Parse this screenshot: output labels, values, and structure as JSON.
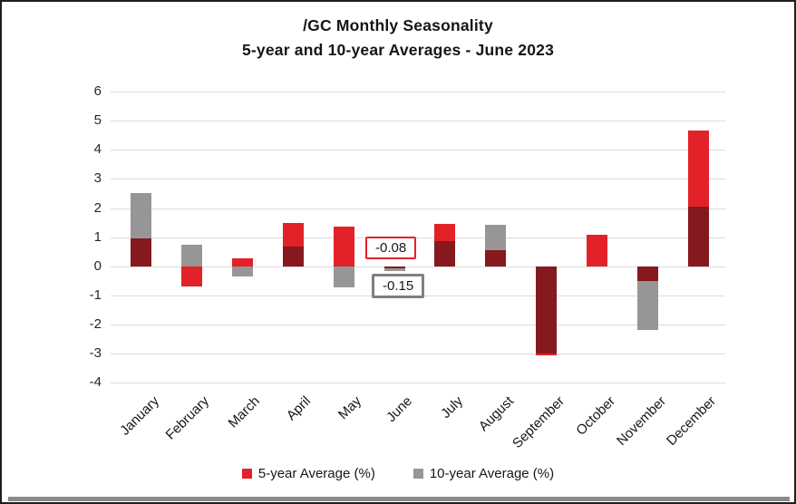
{
  "chart_data": {
    "type": "bar",
    "title_line1": "/GC Monthly Seasonality",
    "title_line2": "5-year and 10-year Averages - June 2023",
    "categories": [
      "January",
      "February",
      "March",
      "April",
      "May",
      "June",
      "July",
      "August",
      "September",
      "October",
      "November",
      "December"
    ],
    "series": [
      {
        "name": "5-year Average (%)",
        "color": "#e32128",
        "values": [
          0.97,
          -0.7,
          0.28,
          1.48,
          1.35,
          -0.08,
          1.45,
          0.54,
          -3.05,
          1.07,
          -0.5,
          4.65
        ]
      },
      {
        "name": "10-year Average (%)",
        "color": "#969696",
        "values": [
          2.52,
          0.75,
          -0.34,
          0.68,
          -0.73,
          -0.15,
          0.85,
          1.43,
          -3.0,
          0.0,
          -2.18,
          2.06
        ]
      }
    ],
    "overlap_color": "#85191d",
    "ylim": [
      -4,
      6
    ],
    "yticks": [
      6,
      5,
      4,
      3,
      2,
      1,
      0,
      -1,
      -2,
      -3,
      -4
    ],
    "grid": "horizontal",
    "legend_position": "bottom",
    "annotations": [
      {
        "month": "June",
        "series": "5-year Average (%)",
        "label": "-0.08",
        "border_color": "#e32128"
      },
      {
        "month": "June",
        "series": "10-year Average (%)",
        "label": "-0.15",
        "border_color": "#7f7f7f"
      }
    ]
  }
}
